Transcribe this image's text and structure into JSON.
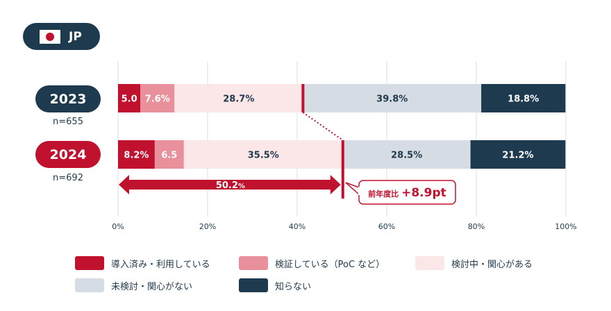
{
  "country": {
    "code": "JP",
    "flag_icon": "japan-flag-icon"
  },
  "rows": [
    {
      "year": "2023",
      "n": "n=655",
      "pill_color": "#1d3a4e"
    },
    {
      "year": "2024",
      "n": "n=692",
      "pill_color": "#c0112f"
    }
  ],
  "legend": [
    {
      "label": "導入済み・利用している",
      "color": "#c0112f"
    },
    {
      "label": "検証している（PoC など）",
      "color": "#e8909c"
    },
    {
      "label": "検討中・関心がある",
      "color": "#fbe6e8"
    },
    {
      "label": "未検討・関心がない",
      "color": "#d5dce3"
    },
    {
      "label": "知らない",
      "color": "#1d3a4e"
    }
  ],
  "chart_data": {
    "type": "bar",
    "orientation": "horizontal-stacked-100",
    "categories": [
      "2023",
      "2024"
    ],
    "series": [
      {
        "name": "導入済み・利用している",
        "values": [
          5.0,
          8.2
        ],
        "labels": [
          "5.0",
          "8.2%"
        ],
        "color": "#c0112f",
        "text_color": "#ffffff"
      },
      {
        "name": "検証している（PoC など）",
        "values": [
          7.6,
          6.5
        ],
        "labels": [
          "7.6%",
          "6.5"
        ],
        "color": "#e8909c",
        "text_color": "#ffffff"
      },
      {
        "name": "検討中・関心がある",
        "values": [
          28.7,
          35.5
        ],
        "labels": [
          "28.7%",
          "35.5%"
        ],
        "color": "#fbe6e8",
        "text_color": "#1f3a4d"
      },
      {
        "name": "未検討・関心がない",
        "values": [
          39.8,
          28.5
        ],
        "labels": [
          "39.8%",
          "28.5%"
        ],
        "color": "#d5dce3",
        "text_color": "#1f3a4d"
      },
      {
        "name": "知らない",
        "values": [
          18.8,
          21.2
        ],
        "labels": [
          "18.8%",
          "21.2%"
        ],
        "color": "#1d3a4e",
        "text_color": "#ffffff"
      }
    ],
    "xlim": [
      0,
      100
    ],
    "xticks": [
      "0%",
      "20%",
      "40%",
      "60%",
      "80%",
      "100%"
    ],
    "grid": true,
    "annotations": {
      "cumulative_2024": {
        "value": 50.2,
        "label_main": "50.2",
        "label_unit": "%"
      },
      "cumulative_2023": 41.3,
      "change_label_prefix": "前年度比",
      "change_label_value": "+8.9pt"
    }
  }
}
